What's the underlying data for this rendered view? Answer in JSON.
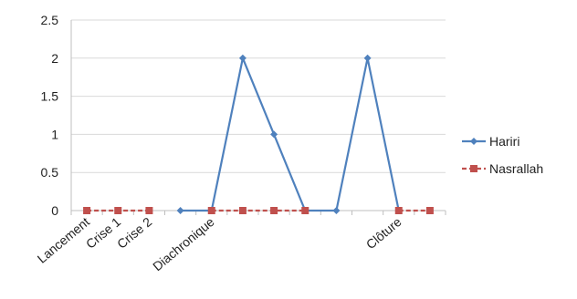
{
  "chart_data": {
    "type": "line",
    "categories": [
      "Lancement",
      "Crise 1",
      "Crise 2",
      "",
      "Diachronique",
      "",
      "",
      "",
      "",
      "",
      "Clôture",
      ""
    ],
    "series": [
      {
        "name": "Hariri",
        "color": "#4f81bd",
        "marker": "diamond",
        "values": [
          null,
          null,
          null,
          0,
          0,
          2,
          1,
          0,
          0,
          2,
          0,
          null
        ]
      },
      {
        "name": "Nasrallah",
        "color": "#c0504d",
        "marker": "square",
        "values": [
          0,
          0,
          0,
          null,
          0,
          0,
          0,
          0,
          null,
          null,
          0,
          0
        ]
      }
    ],
    "ylim": [
      0,
      2.5
    ],
    "yticks": [
      "0",
      "0.5",
      "1",
      "1.5",
      "2",
      "2.5"
    ],
    "grid": true,
    "legend_position": "right"
  }
}
